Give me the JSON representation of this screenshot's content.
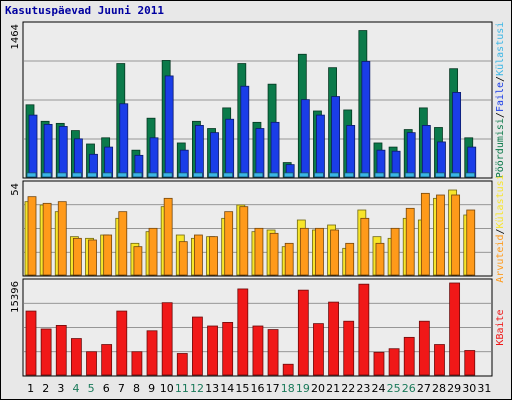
{
  "title": "Kasutuspäevad Juuni 2011",
  "colors": {
    "background": "#e8e8e8",
    "panel": "#ececec",
    "grid": "#7a7a7a",
    "pageviews": "#0b7a4a",
    "files": "#1a3de8",
    "hits": "#3ab6e6",
    "visits": "#f7e52a",
    "sites": "#ff9a1a",
    "kbytes": "#f01818",
    "weekday_label": "#000000",
    "weekend_label": "#1a7a5a"
  },
  "chart_data": [
    {
      "type": "bar",
      "panel": "top",
      "ymax_label": "1464",
      "ylim": [
        0,
        1464
      ],
      "side_labels": [
        {
          "text": "Pöördumisi",
          "color": "#0b7a4a"
        },
        {
          "text": "Faile",
          "color": "#1a3de8"
        },
        {
          "text": "Külastusi",
          "color": "#3ab6e6"
        }
      ],
      "side_separators": [
        "/",
        "/"
      ],
      "categories": [
        "1",
        "2",
        "3",
        "4",
        "5",
        "6",
        "7",
        "8",
        "9",
        "10",
        "11",
        "12",
        "13",
        "14",
        "15",
        "16",
        "17",
        "18",
        "19",
        "20",
        "21",
        "22",
        "23",
        "24",
        "25",
        "26",
        "27",
        "28",
        "29",
        "30",
        "31"
      ],
      "weekend_days": [
        "4",
        "5",
        "11",
        "12",
        "18",
        "19",
        "25",
        "26"
      ],
      "series": [
        {
          "name": "Pöördumisi",
          "color": "#0b7a4a",
          "values": [
            700,
            540,
            520,
            450,
            320,
            380,
            1100,
            260,
            570,
            1130,
            330,
            540,
            470,
            670,
            1100,
            530,
            900,
            140,
            1190,
            640,
            1060,
            650,
            1420,
            330,
            290,
            460,
            670,
            480,
            1050,
            380,
            0
          ]
        },
        {
          "name": "Faile",
          "color": "#1a3de8",
          "values": [
            600,
            510,
            490,
            370,
            220,
            290,
            710,
            210,
            380,
            980,
            260,
            500,
            430,
            560,
            880,
            470,
            530,
            120,
            750,
            600,
            780,
            500,
            1120,
            260,
            250,
            430,
            500,
            340,
            820,
            290,
            0
          ]
        },
        {
          "name": "Külastusi",
          "color": "#3ab6e6",
          "values": [
            40,
            40,
            40,
            40,
            40,
            40,
            40,
            40,
            40,
            40,
            40,
            40,
            40,
            40,
            40,
            40,
            40,
            40,
            40,
            40,
            40,
            40,
            40,
            40,
            40,
            40,
            40,
            40,
            40,
            40,
            0
          ]
        }
      ]
    },
    {
      "type": "bar",
      "panel": "middle",
      "ymax_label": "54",
      "ylim": [
        0,
        54
      ],
      "side_labels": [
        {
          "text": "Arvuteid",
          "color": "#ff9a1a"
        },
        {
          "text": "Külastusi",
          "color": "#f7e52a"
        }
      ],
      "side_separators": [
        "/"
      ],
      "categories": [
        "1",
        "2",
        "3",
        "4",
        "5",
        "6",
        "7",
        "8",
        "9",
        "10",
        "11",
        "12",
        "13",
        "14",
        "15",
        "16",
        "17",
        "18",
        "19",
        "20",
        "21",
        "22",
        "23",
        "24",
        "25",
        "26",
        "27",
        "28",
        "29",
        "30",
        "31"
      ],
      "series": [
        {
          "name": "Külastusi",
          "color": "#f7e52a",
          "values": [
            44,
            42,
            38,
            23,
            22,
            24,
            34,
            19,
            26,
            41,
            24,
            22,
            23,
            34,
            42,
            26,
            27,
            17,
            33,
            27,
            30,
            16,
            39,
            23,
            22,
            34,
            33,
            46,
            51,
            36,
            0
          ]
        },
        {
          "name": "Arvuteid",
          "color": "#ff9a1a",
          "values": [
            47,
            43,
            44,
            22,
            21,
            24,
            38,
            17,
            28,
            46,
            20,
            24,
            23,
            38,
            41,
            28,
            25,
            19,
            28,
            28,
            27,
            19,
            34,
            19,
            28,
            40,
            49,
            48,
            48,
            39,
            0
          ]
        }
      ]
    },
    {
      "type": "bar",
      "panel": "bottom",
      "ymax_label": "15396",
      "ylim": [
        0,
        15396
      ],
      "side_labels": [
        {
          "text": "KBaite",
          "color": "#f01818"
        }
      ],
      "side_separators": [],
      "categories": [
        "1",
        "2",
        "3",
        "4",
        "5",
        "6",
        "7",
        "8",
        "9",
        "10",
        "11",
        "12",
        "13",
        "14",
        "15",
        "16",
        "17",
        "18",
        "19",
        "20",
        "21",
        "22",
        "23",
        "24",
        "25",
        "26",
        "27",
        "28",
        "29",
        "30",
        "31"
      ],
      "series": [
        {
          "name": "KBaite",
          "color": "#f01818",
          "values": [
            10700,
            7700,
            8300,
            6100,
            3900,
            5100,
            10700,
            3900,
            7400,
            12100,
            3600,
            9700,
            8200,
            8800,
            14400,
            8200,
            7600,
            1800,
            14200,
            8600,
            12200,
            9000,
            15200,
            3800,
            4400,
            6300,
            9000,
            5100,
            15396,
            4100,
            0
          ]
        }
      ]
    }
  ]
}
